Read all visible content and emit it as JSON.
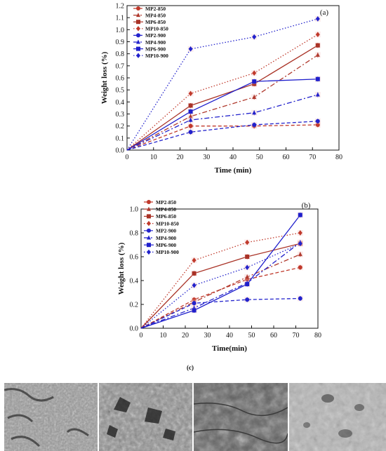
{
  "chart_data": [
    {
      "type": "line",
      "panel_label": "(a)",
      "xlabel": "Time (min)",
      "ylabel": "Weight loss (%)",
      "xlim": [
        0,
        80
      ],
      "ylim": [
        0,
        1.2
      ],
      "xticks": [
        0,
        10,
        20,
        30,
        40,
        50,
        60,
        70,
        80
      ],
      "yticks": [
        0.0,
        0.1,
        0.2,
        0.3,
        0.4,
        0.5,
        0.6,
        0.7,
        0.8,
        0.9,
        1.0,
        1.1,
        1.2
      ],
      "x": [
        0,
        24,
        48,
        72
      ],
      "legend_position": "top-left",
      "series": [
        {
          "name": "MP2-850",
          "values": [
            0,
            0.2,
            0.2,
            0.21
          ],
          "color": "#c0392b",
          "dash": "5,3",
          "marker": "circle"
        },
        {
          "name": "MP4-850",
          "values": [
            0,
            0.28,
            0.44,
            0.79
          ],
          "color": "#b03a2e",
          "dash": "7,3,2,3",
          "marker": "triangle"
        },
        {
          "name": "MP6-850",
          "values": [
            0,
            0.37,
            0.55,
            0.87
          ],
          "color": "#a93226",
          "dash": "",
          "marker": "square"
        },
        {
          "name": "MP10-850",
          "values": [
            0,
            0.47,
            0.64,
            0.96
          ],
          "color": "#c0392b",
          "dash": "1.5,2.5",
          "marker": "diamond"
        },
        {
          "name": "MP2-900",
          "values": [
            0,
            0.15,
            0.21,
            0.24
          ],
          "color": "#2222cc",
          "dash": "5,3",
          "marker": "circle"
        },
        {
          "name": "MP4-900",
          "values": [
            0,
            0.25,
            0.31,
            0.46
          ],
          "color": "#2222cc",
          "dash": "7,3,2,3",
          "marker": "triangle"
        },
        {
          "name": "MP6-900",
          "values": [
            0,
            0.32,
            0.57,
            0.59
          ],
          "color": "#1f1fcc",
          "dash": "",
          "marker": "square"
        },
        {
          "name": "MP10-900",
          "values": [
            0,
            0.84,
            0.94,
            1.09
          ],
          "color": "#2222cc",
          "dash": "1.5,2.5",
          "marker": "diamond"
        }
      ]
    },
    {
      "type": "line",
      "panel_label": "(b)",
      "xlabel": "Time(min)",
      "ylabel": "Weight loss (%)",
      "xlim": [
        0,
        80
      ],
      "ylim": [
        0,
        1.0
      ],
      "xticks": [
        0,
        10,
        20,
        30,
        40,
        50,
        60,
        70,
        80
      ],
      "yticks": [
        0.0,
        0.2,
        0.4,
        0.6,
        0.8,
        1.0
      ],
      "x": [
        0,
        24,
        48,
        72
      ],
      "legend_position": "top-left",
      "series": [
        {
          "name": "MP2-850",
          "values": [
            0,
            0.24,
            0.41,
            0.51
          ],
          "color": "#c0392b",
          "dash": "5,3",
          "marker": "circle"
        },
        {
          "name": "MP4-850",
          "values": [
            0,
            0.22,
            0.43,
            0.62
          ],
          "color": "#b03a2e",
          "dash": "7,3,2,3",
          "marker": "triangle"
        },
        {
          "name": "MP6-850",
          "values": [
            0,
            0.46,
            0.6,
            0.71
          ],
          "color": "#a93226",
          "dash": "",
          "marker": "square"
        },
        {
          "name": "MP10-850",
          "values": [
            0,
            0.57,
            0.72,
            0.8
          ],
          "color": "#c0392b",
          "dash": "1.5,2.5",
          "marker": "diamond"
        },
        {
          "name": "MP2-900",
          "values": [
            0,
            0.21,
            0.24,
            0.25
          ],
          "color": "#2222cc",
          "dash": "5,3",
          "marker": "circle"
        },
        {
          "name": "MP4-900",
          "values": [
            0,
            0.17,
            0.38,
            0.72
          ],
          "color": "#2222cc",
          "dash": "7,3,2,3",
          "marker": "triangle"
        },
        {
          "name": "MP6-900",
          "values": [
            0,
            0.15,
            0.37,
            0.95
          ],
          "color": "#1f1fcc",
          "dash": "",
          "marker": "square"
        },
        {
          "name": "MP10-900",
          "values": [
            0,
            0.36,
            0.51,
            0.71
          ],
          "color": "#2222cc",
          "dash": "1.5,2.5",
          "marker": "diamond"
        }
      ]
    }
  ],
  "figure": {
    "panel_c_label": "(c)",
    "sem_images": [
      "sem-image-1",
      "sem-image-2",
      "sem-image-3",
      "sem-image-4"
    ]
  }
}
